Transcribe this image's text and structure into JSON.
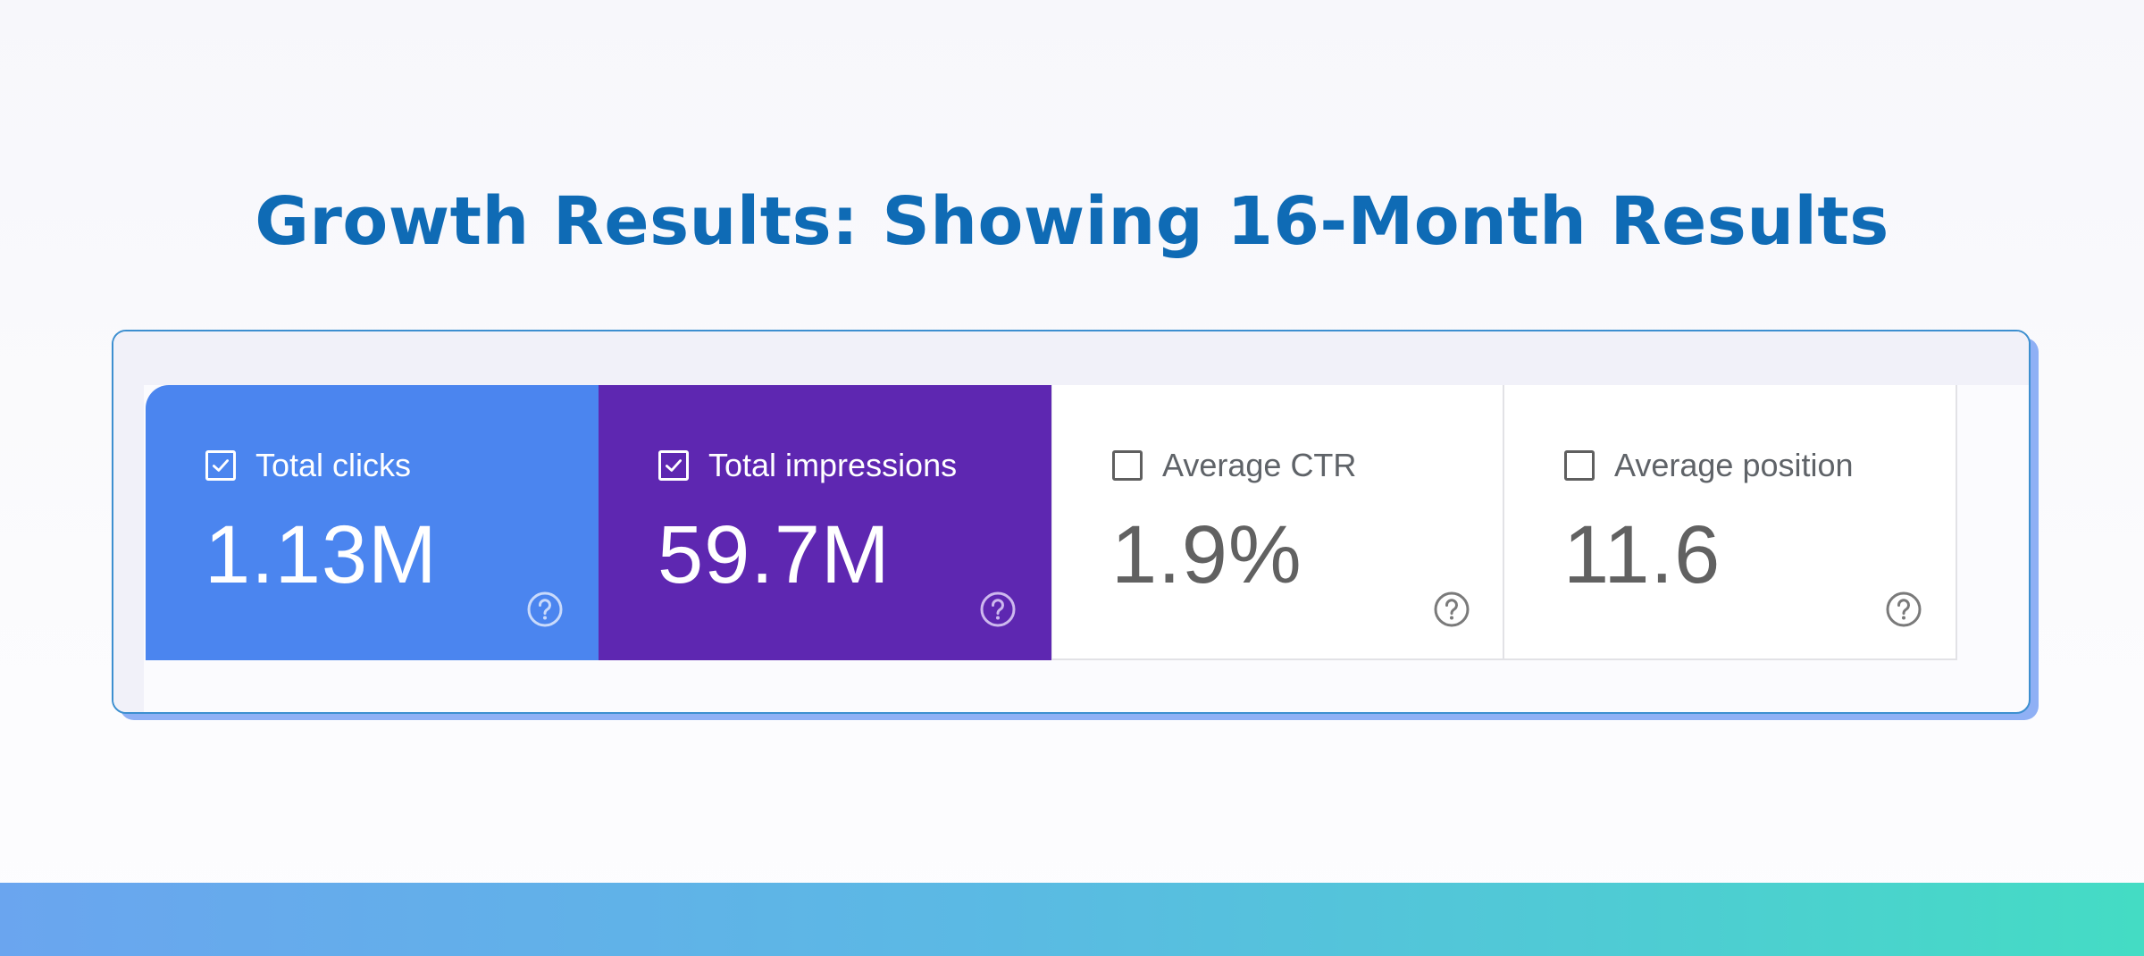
{
  "page": {
    "title": "Growth Results: Showing 16-Month Results"
  },
  "colors": {
    "title": "#0f6bb5",
    "clicks_tile": "#4b85ef",
    "impressions_tile": "#5e27b1",
    "card_border": "#3d8fd0",
    "band_start": "#6aa5ef",
    "band_end": "#44dcc4"
  },
  "metrics": [
    {
      "label": "Total clicks",
      "value": "1.13M",
      "checked": true,
      "checkbox_icon": "checkbox-checked-icon",
      "help_icon": "help-circle-icon"
    },
    {
      "label": "Total impressions",
      "value": "59.7M",
      "checked": true,
      "checkbox_icon": "checkbox-checked-icon",
      "help_icon": "help-circle-icon"
    },
    {
      "label": "Average CTR",
      "value": "1.9%",
      "checked": false,
      "checkbox_icon": "checkbox-unchecked-icon",
      "help_icon": "help-circle-icon"
    },
    {
      "label": "Average position",
      "value": "11.6",
      "checked": false,
      "checkbox_icon": "checkbox-unchecked-icon",
      "help_icon": "help-circle-icon"
    }
  ]
}
